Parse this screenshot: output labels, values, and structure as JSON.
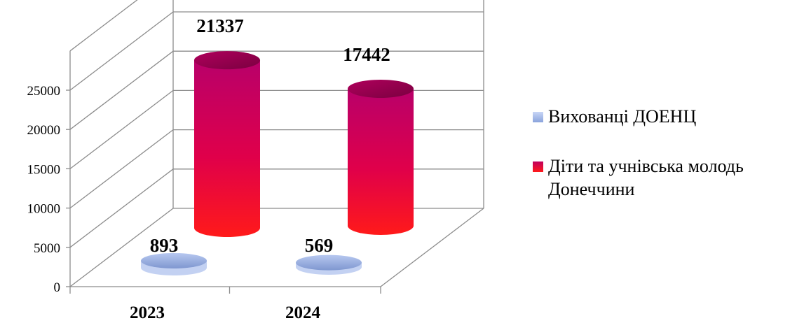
{
  "chart_data": {
    "type": "bar",
    "style": "3d-cylinder",
    "categories": [
      "2023",
      "2024"
    ],
    "series": [
      {
        "name": "Вихованці ДОЕНЦ",
        "values": [
          893,
          569
        ],
        "color": "#9fb4e8"
      },
      {
        "name": "Діти та учнівська молодь Донеччини",
        "values": [
          21337,
          17442
        ],
        "color": "#d6005e"
      }
    ],
    "ylim": [
      0,
      25000
    ],
    "yticks": [
      "0",
      "5000",
      "10000",
      "15000",
      "20000",
      "25000"
    ],
    "grid": true,
    "legend_position": "right"
  }
}
